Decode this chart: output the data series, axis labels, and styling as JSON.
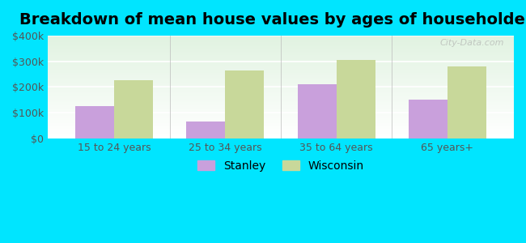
{
  "title": "Breakdown of mean house values by ages of householders",
  "categories": [
    "15 to 24 years",
    "25 to 34 years",
    "35 to 64 years",
    "65 years+"
  ],
  "stanley_values": [
    125000,
    65000,
    210000,
    150000
  ],
  "wisconsin_values": [
    225000,
    265000,
    305000,
    280000
  ],
  "stanley_color": "#c9a0dc",
  "wisconsin_color": "#c8d89a",
  "background_color": "#00e5ff",
  "ylim": [
    0,
    400000
  ],
  "yticks": [
    0,
    100000,
    200000,
    300000,
    400000
  ],
  "ytick_labels": [
    "$0",
    "$100k",
    "$200k",
    "$300k",
    "$400k"
  ],
  "bar_width": 0.35,
  "legend_labels": [
    "Stanley",
    "Wisconsin"
  ],
  "watermark": "City-Data.com",
  "title_fontsize": 14,
  "tick_fontsize": 9,
  "legend_fontsize": 10
}
